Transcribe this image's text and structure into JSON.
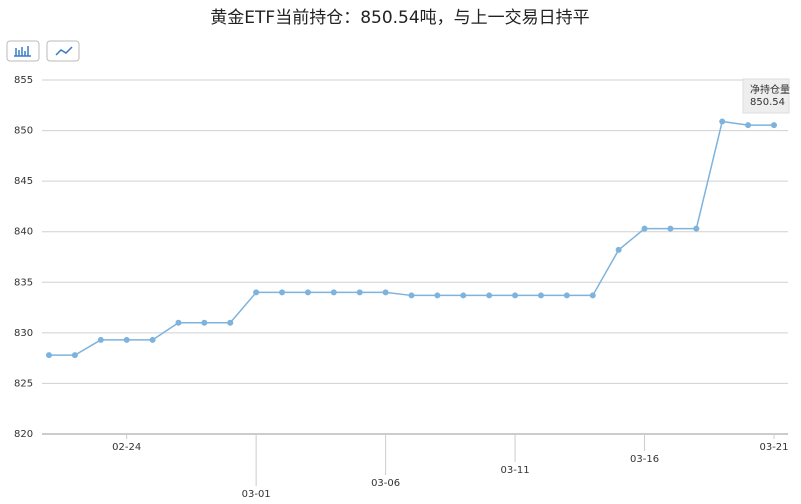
{
  "chart_data": {
    "type": "line",
    "title": "黄金ETF当前持仓：850.54吨，与上一交易日持平",
    "categories": [
      null,
      null,
      null,
      "02-24",
      null,
      null,
      null,
      null,
      "03-01",
      null,
      null,
      null,
      null,
      "03-06",
      null,
      null,
      null,
      null,
      "03-11",
      null,
      null,
      null,
      null,
      "03-16",
      null,
      null,
      null,
      null,
      "03-21"
    ],
    "series": [
      {
        "name": "净持仓量",
        "color": "#7db3dd",
        "values": [
          827.8,
          827.8,
          829.3,
          829.3,
          829.3,
          831.0,
          831.0,
          831.0,
          834.0,
          834.0,
          834.0,
          834.0,
          834.0,
          834.0,
          833.7,
          833.7,
          833.7,
          833.7,
          833.7,
          833.7,
          833.7,
          833.7,
          838.2,
          840.3,
          840.3,
          840.3,
          850.9,
          850.54,
          850.54
        ]
      }
    ],
    "ylim": [
      820,
      855
    ],
    "yticks": [
      820,
      825,
      830,
      835,
      840,
      845,
      850,
      855
    ],
    "grid": true,
    "tooltip": {
      "label": "净持仓量",
      "value": 850.54
    }
  }
}
